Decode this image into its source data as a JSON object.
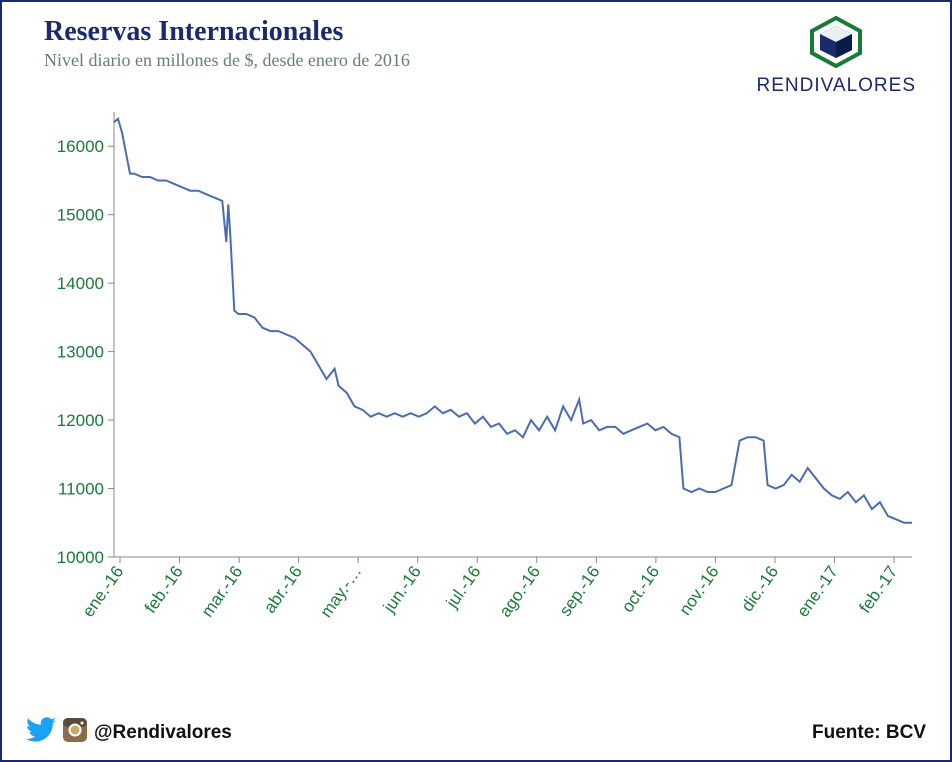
{
  "title": "Reservas Internacionales",
  "subtitle": "Nivel diario en millones de $, desde enero de 2016",
  "brand": {
    "name": "RENDIVALORES"
  },
  "social_handle": "@Rendivalores",
  "source_label": "Fuente: BCV",
  "colors": {
    "frame_border": "#1a2a6c",
    "title": "#1a2a6c",
    "subtitle": "#6a7b7b",
    "tick_label": "#1a7a3a",
    "line": "#4a6db0",
    "axis": "#888888",
    "background": "#ffffff",
    "brand_hex_outer": "#1a7a3a",
    "brand_hex_inner": "#1a2a6c",
    "twitter": "#1da1f2"
  },
  "chart": {
    "type": "line",
    "ylim": [
      10000,
      16500
    ],
    "yticks": [
      10000,
      11000,
      12000,
      13000,
      14000,
      15000,
      16000
    ],
    "xlabels": [
      "ene.-16",
      "feb.-16",
      "mar.-16",
      "abr.-16",
      "may.-…",
      "jun.-16",
      "jul.-16",
      "ago.-16",
      "sep.-16",
      "oct.-16",
      "nov.-16",
      "dic.-16",
      "ene.-17",
      "feb.-17"
    ],
    "line_width": 2,
    "tick_fontsize": 17,
    "title_fontsize": 28,
    "subtitle_fontsize": 18,
    "series": [
      {
        "x": 0,
        "y": 16350
      },
      {
        "x": 2,
        "y": 16400
      },
      {
        "x": 4,
        "y": 16200
      },
      {
        "x": 6,
        "y": 15900
      },
      {
        "x": 8,
        "y": 15600
      },
      {
        "x": 10,
        "y": 15600
      },
      {
        "x": 14,
        "y": 15550
      },
      {
        "x": 18,
        "y": 15550
      },
      {
        "x": 22,
        "y": 15500
      },
      {
        "x": 26,
        "y": 15500
      },
      {
        "x": 30,
        "y": 15450
      },
      {
        "x": 34,
        "y": 15400
      },
      {
        "x": 38,
        "y": 15350
      },
      {
        "x": 42,
        "y": 15350
      },
      {
        "x": 46,
        "y": 15300
      },
      {
        "x": 50,
        "y": 15250
      },
      {
        "x": 54,
        "y": 15200
      },
      {
        "x": 56,
        "y": 14600
      },
      {
        "x": 57,
        "y": 15150
      },
      {
        "x": 58,
        "y": 14700
      },
      {
        "x": 60,
        "y": 13600
      },
      {
        "x": 62,
        "y": 13550
      },
      {
        "x": 66,
        "y": 13550
      },
      {
        "x": 70,
        "y": 13500
      },
      {
        "x": 74,
        "y": 13350
      },
      {
        "x": 78,
        "y": 13300
      },
      {
        "x": 82,
        "y": 13300
      },
      {
        "x": 86,
        "y": 13250
      },
      {
        "x": 90,
        "y": 13200
      },
      {
        "x": 94,
        "y": 13100
      },
      {
        "x": 98,
        "y": 13000
      },
      {
        "x": 102,
        "y": 12800
      },
      {
        "x": 106,
        "y": 12600
      },
      {
        "x": 110,
        "y": 12750
      },
      {
        "x": 112,
        "y": 12500
      },
      {
        "x": 116,
        "y": 12400
      },
      {
        "x": 120,
        "y": 12200
      },
      {
        "x": 124,
        "y": 12150
      },
      {
        "x": 128,
        "y": 12050
      },
      {
        "x": 132,
        "y": 12100
      },
      {
        "x": 136,
        "y": 12050
      },
      {
        "x": 140,
        "y": 12100
      },
      {
        "x": 144,
        "y": 12050
      },
      {
        "x": 148,
        "y": 12100
      },
      {
        "x": 152,
        "y": 12050
      },
      {
        "x": 156,
        "y": 12100
      },
      {
        "x": 160,
        "y": 12200
      },
      {
        "x": 164,
        "y": 12100
      },
      {
        "x": 168,
        "y": 12150
      },
      {
        "x": 172,
        "y": 12050
      },
      {
        "x": 176,
        "y": 12100
      },
      {
        "x": 180,
        "y": 11950
      },
      {
        "x": 184,
        "y": 12050
      },
      {
        "x": 188,
        "y": 11900
      },
      {
        "x": 192,
        "y": 11950
      },
      {
        "x": 196,
        "y": 11800
      },
      {
        "x": 200,
        "y": 11850
      },
      {
        "x": 204,
        "y": 11750
      },
      {
        "x": 208,
        "y": 12000
      },
      {
        "x": 212,
        "y": 11850
      },
      {
        "x": 216,
        "y": 12050
      },
      {
        "x": 220,
        "y": 11850
      },
      {
        "x": 224,
        "y": 12200
      },
      {
        "x": 228,
        "y": 12000
      },
      {
        "x": 232,
        "y": 12300
      },
      {
        "x": 234,
        "y": 11950
      },
      {
        "x": 238,
        "y": 12000
      },
      {
        "x": 242,
        "y": 11850
      },
      {
        "x": 246,
        "y": 11900
      },
      {
        "x": 250,
        "y": 11900
      },
      {
        "x": 254,
        "y": 11800
      },
      {
        "x": 258,
        "y": 11850
      },
      {
        "x": 262,
        "y": 11900
      },
      {
        "x": 266,
        "y": 11950
      },
      {
        "x": 270,
        "y": 11850
      },
      {
        "x": 274,
        "y": 11900
      },
      {
        "x": 278,
        "y": 11800
      },
      {
        "x": 282,
        "y": 11750
      },
      {
        "x": 284,
        "y": 11000
      },
      {
        "x": 288,
        "y": 10950
      },
      {
        "x": 292,
        "y": 11000
      },
      {
        "x": 296,
        "y": 10950
      },
      {
        "x": 300,
        "y": 10950
      },
      {
        "x": 304,
        "y": 11000
      },
      {
        "x": 308,
        "y": 11050
      },
      {
        "x": 312,
        "y": 11700
      },
      {
        "x": 316,
        "y": 11750
      },
      {
        "x": 320,
        "y": 11750
      },
      {
        "x": 324,
        "y": 11700
      },
      {
        "x": 326,
        "y": 11050
      },
      {
        "x": 330,
        "y": 11000
      },
      {
        "x": 334,
        "y": 11050
      },
      {
        "x": 338,
        "y": 11200
      },
      {
        "x": 342,
        "y": 11100
      },
      {
        "x": 346,
        "y": 11300
      },
      {
        "x": 350,
        "y": 11150
      },
      {
        "x": 354,
        "y": 11000
      },
      {
        "x": 358,
        "y": 10900
      },
      {
        "x": 362,
        "y": 10850
      },
      {
        "x": 366,
        "y": 10950
      },
      {
        "x": 370,
        "y": 10800
      },
      {
        "x": 374,
        "y": 10900
      },
      {
        "x": 378,
        "y": 10700
      },
      {
        "x": 382,
        "y": 10800
      },
      {
        "x": 386,
        "y": 10600
      },
      {
        "x": 390,
        "y": 10550
      },
      {
        "x": 394,
        "y": 10500
      },
      {
        "x": 398,
        "y": 10500
      }
    ],
    "x_domain_max": 398
  }
}
